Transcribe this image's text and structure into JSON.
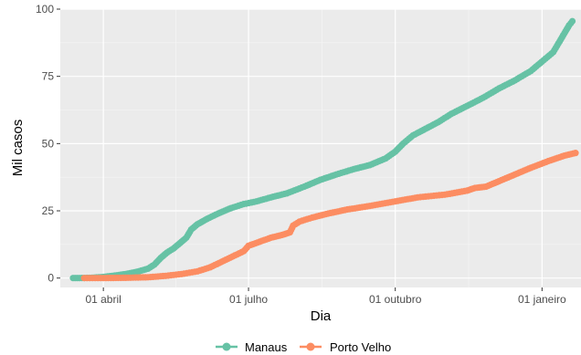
{
  "chart_data": {
    "type": "line",
    "title": "",
    "xlabel": "Dia",
    "ylabel": "Mil casos",
    "x_axis": {
      "type": "date",
      "range": [
        "2020-03-05",
        "2021-01-26"
      ],
      "ticks": [
        {
          "date": "2020-04-01",
          "label": "01 abril"
        },
        {
          "date": "2020-07-01",
          "label": "01 julho"
        },
        {
          "date": "2020-10-01",
          "label": "01 outubro"
        },
        {
          "date": "2021-01-01",
          "label": "01 janeiro"
        }
      ]
    },
    "y_axis": {
      "range": [
        -3.5,
        100
      ],
      "ticks": [
        0,
        25,
        50,
        75,
        100
      ]
    },
    "grid": true,
    "panel_background": "#ebebeb",
    "legend": {
      "position": "bottom"
    },
    "series": [
      {
        "name": "Manaus",
        "color": "#66c2a5",
        "points": [
          [
            "2020-03-13",
            0.0
          ],
          [
            "2020-03-17",
            0.0
          ],
          [
            "2020-03-25",
            0.1
          ],
          [
            "2020-04-01",
            0.4
          ],
          [
            "2020-04-08",
            0.9
          ],
          [
            "2020-04-15",
            1.5
          ],
          [
            "2020-04-22",
            2.3
          ],
          [
            "2020-04-29",
            3.5
          ],
          [
            "2020-05-03",
            5.0
          ],
          [
            "2020-05-07",
            7.5
          ],
          [
            "2020-05-11",
            9.5
          ],
          [
            "2020-05-15",
            11.0
          ],
          [
            "2020-05-19",
            13.0
          ],
          [
            "2020-05-23",
            15.0
          ],
          [
            "2020-05-26",
            18.0
          ],
          [
            "2020-05-30",
            20.0
          ],
          [
            "2020-06-05",
            22.0
          ],
          [
            "2020-06-12",
            24.0
          ],
          [
            "2020-06-20",
            26.0
          ],
          [
            "2020-06-28",
            27.5
          ],
          [
            "2020-07-06",
            28.5
          ],
          [
            "2020-07-15",
            30.0
          ],
          [
            "2020-07-25",
            31.5
          ],
          [
            "2020-08-05",
            34.0
          ],
          [
            "2020-08-15",
            36.5
          ],
          [
            "2020-08-25",
            38.5
          ],
          [
            "2020-09-05",
            40.5
          ],
          [
            "2020-09-15",
            42.0
          ],
          [
            "2020-09-25",
            44.5
          ],
          [
            "2020-10-01",
            47.0
          ],
          [
            "2020-10-06",
            50.0
          ],
          [
            "2020-10-12",
            53.0
          ],
          [
            "2020-10-20",
            55.5
          ],
          [
            "2020-10-28",
            58.0
          ],
          [
            "2020-11-05",
            61.0
          ],
          [
            "2020-11-15",
            64.0
          ],
          [
            "2020-11-25",
            67.0
          ],
          [
            "2020-12-05",
            70.5
          ],
          [
            "2020-12-15",
            73.5
          ],
          [
            "2020-12-25",
            77.0
          ],
          [
            "2021-01-02",
            81.0
          ],
          [
            "2021-01-08",
            84.0
          ],
          [
            "2021-01-12",
            88.0
          ],
          [
            "2021-01-15",
            91.0
          ],
          [
            "2021-01-18",
            94.0
          ],
          [
            "2021-01-20",
            95.5
          ]
        ]
      },
      {
        "name": "Porto Velho",
        "color": "#fc8d62",
        "points": [
          [
            "2020-03-20",
            0.0
          ],
          [
            "2020-04-01",
            0.0
          ],
          [
            "2020-04-15",
            0.1
          ],
          [
            "2020-04-29",
            0.3
          ],
          [
            "2020-05-10",
            0.8
          ],
          [
            "2020-05-20",
            1.5
          ],
          [
            "2020-05-30",
            2.5
          ],
          [
            "2020-06-07",
            4.0
          ],
          [
            "2020-06-14",
            6.0
          ],
          [
            "2020-06-21",
            8.0
          ],
          [
            "2020-06-28",
            10.0
          ],
          [
            "2020-07-01",
            12.0
          ],
          [
            "2020-07-08",
            13.5
          ],
          [
            "2020-07-15",
            15.0
          ],
          [
            "2020-07-22",
            16.0
          ],
          [
            "2020-07-27",
            17.0
          ],
          [
            "2020-07-29",
            19.5
          ],
          [
            "2020-08-02",
            21.0
          ],
          [
            "2020-08-10",
            22.5
          ],
          [
            "2020-08-20",
            24.0
          ],
          [
            "2020-09-01",
            25.5
          ],
          [
            "2020-09-15",
            26.8
          ],
          [
            "2020-10-01",
            28.5
          ],
          [
            "2020-10-15",
            30.0
          ],
          [
            "2020-11-01",
            31.0
          ],
          [
            "2020-11-15",
            32.5
          ],
          [
            "2020-11-20",
            33.5
          ],
          [
            "2020-11-27",
            34.0
          ],
          [
            "2020-12-05",
            36.0
          ],
          [
            "2020-12-15",
            38.5
          ],
          [
            "2020-12-25",
            41.0
          ],
          [
            "2021-01-05",
            43.5
          ],
          [
            "2021-01-15",
            45.5
          ],
          [
            "2021-01-22",
            46.5
          ]
        ]
      }
    ]
  }
}
